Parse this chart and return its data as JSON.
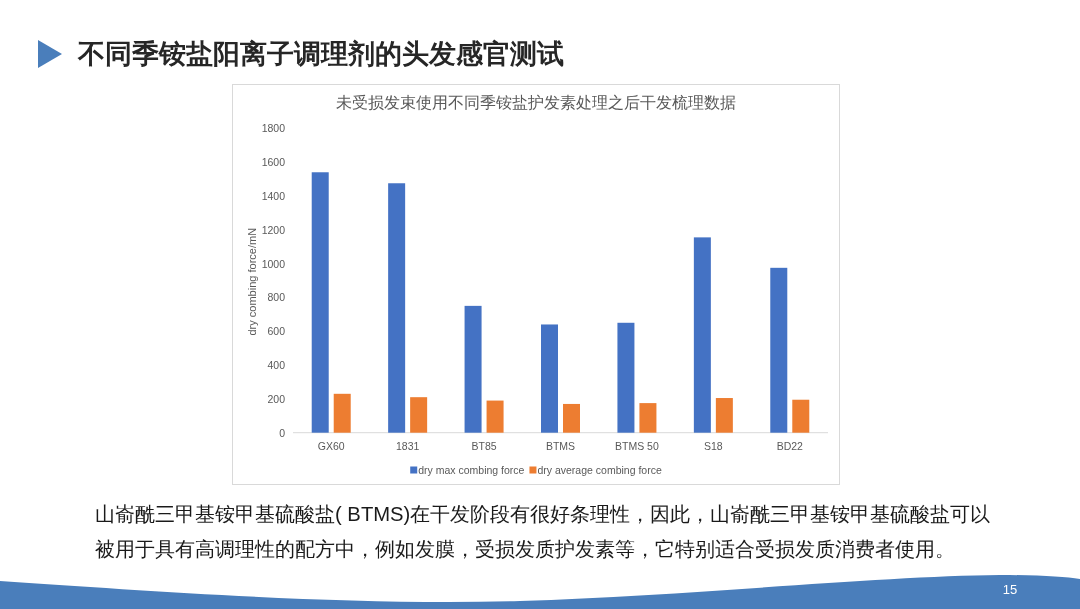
{
  "chart_data": {
    "type": "bar",
    "title": "不同季铵盐阳离子调理剂的头发感官测试",
    "subtitle": "未受损发束使用不同季铵盐护发素处理之后干发梳理数据",
    "ylabel": "dry combing force/mN",
    "categories": [
      "GX60",
      "1831",
      "BT85",
      "BTMS",
      "BTMS 50",
      "S18",
      "BD22"
    ],
    "series": [
      {
        "name": "dry max combing force",
        "color": "#4472c4",
        "values": [
          1540,
          1475,
          750,
          640,
          650,
          1155,
          975
        ]
      },
      {
        "name": "dry average combing force",
        "color": "#ed7d31",
        "values": [
          230,
          210,
          190,
          170,
          175,
          205,
          195
        ]
      }
    ],
    "ylim": [
      0,
      1800
    ],
    "yticks": [
      0,
      200,
      400,
      600,
      800,
      1000,
      1200,
      1400,
      1600,
      1800
    ],
    "legend": "bottom",
    "annotations": [
      "山嵛酰三甲基铵甲基硫酸盐( BTMS)在干发阶段有很好条理性，因此，山嵛酰三甲基铵甲基硫酸盐可以被用于具有高调理性的配方中，例如发膜，受损发质护发素等，它特别适合受损发质消费者使用。",
      "15"
    ]
  }
}
